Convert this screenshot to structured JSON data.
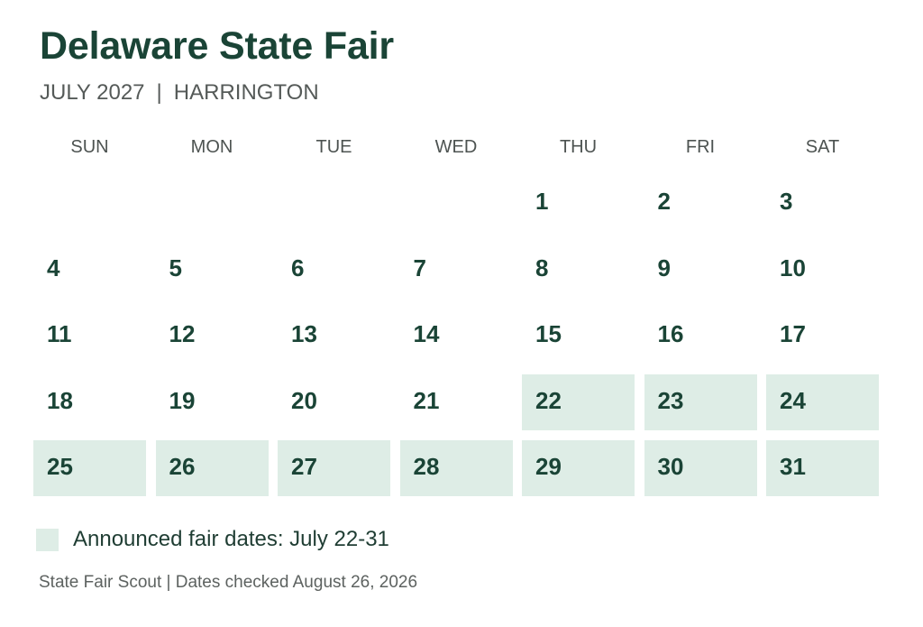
{
  "header": {
    "title": "Delaware State Fair",
    "month_year": "JULY 2027",
    "separator": "|",
    "location": "HARRINGTON"
  },
  "calendar": {
    "weekdays": [
      "SUN",
      "MON",
      "TUE",
      "WED",
      "THU",
      "FRI",
      "SAT"
    ],
    "first_weekday_index": 4,
    "days_in_month": 31,
    "fair_days": [
      22,
      23,
      24,
      25,
      26,
      27,
      28,
      29,
      30,
      31
    ],
    "highlight_color": "#deede6"
  },
  "legend": {
    "label": "Announced fair dates: July 22-31"
  },
  "footer": {
    "text": "State Fair Scout | Dates checked August 26, 2026"
  }
}
